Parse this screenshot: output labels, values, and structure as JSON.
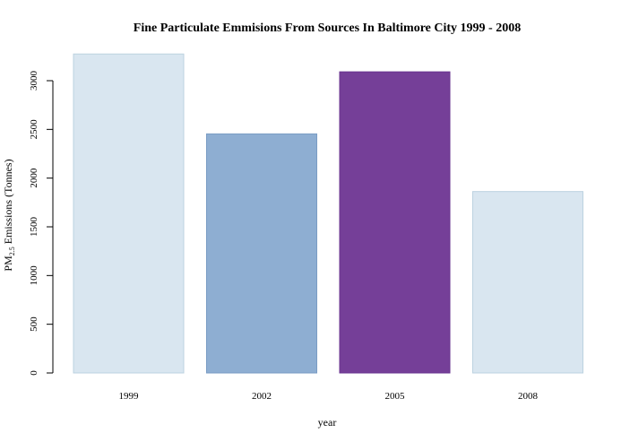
{
  "chart_data": {
    "type": "bar",
    "title": "Fine Particulate Emmisions From Sources In Baltimore City 1999 - 2008",
    "xlabel": "year",
    "ylabel": {
      "prefix": "PM",
      "subscript": "2.5",
      "suffix": " Emissions (Tonnes)"
    },
    "categories": [
      "1999",
      "2002",
      "2005",
      "2008"
    ],
    "values": [
      3274,
      2454,
      3091,
      1862
    ],
    "colors": [
      "#d9e6f0",
      "#8eaed2",
      "#753f98",
      "#d9e6f0"
    ],
    "edge_colors": [
      "#bcd2e0",
      "#7a9cc4",
      "#6a3590",
      "#bcd2e0"
    ],
    "yticks": [
      0,
      500,
      1000,
      1500,
      2000,
      2500,
      3000
    ],
    "ylim": [
      0,
      3300
    ],
    "grid": false,
    "legend": "none"
  }
}
